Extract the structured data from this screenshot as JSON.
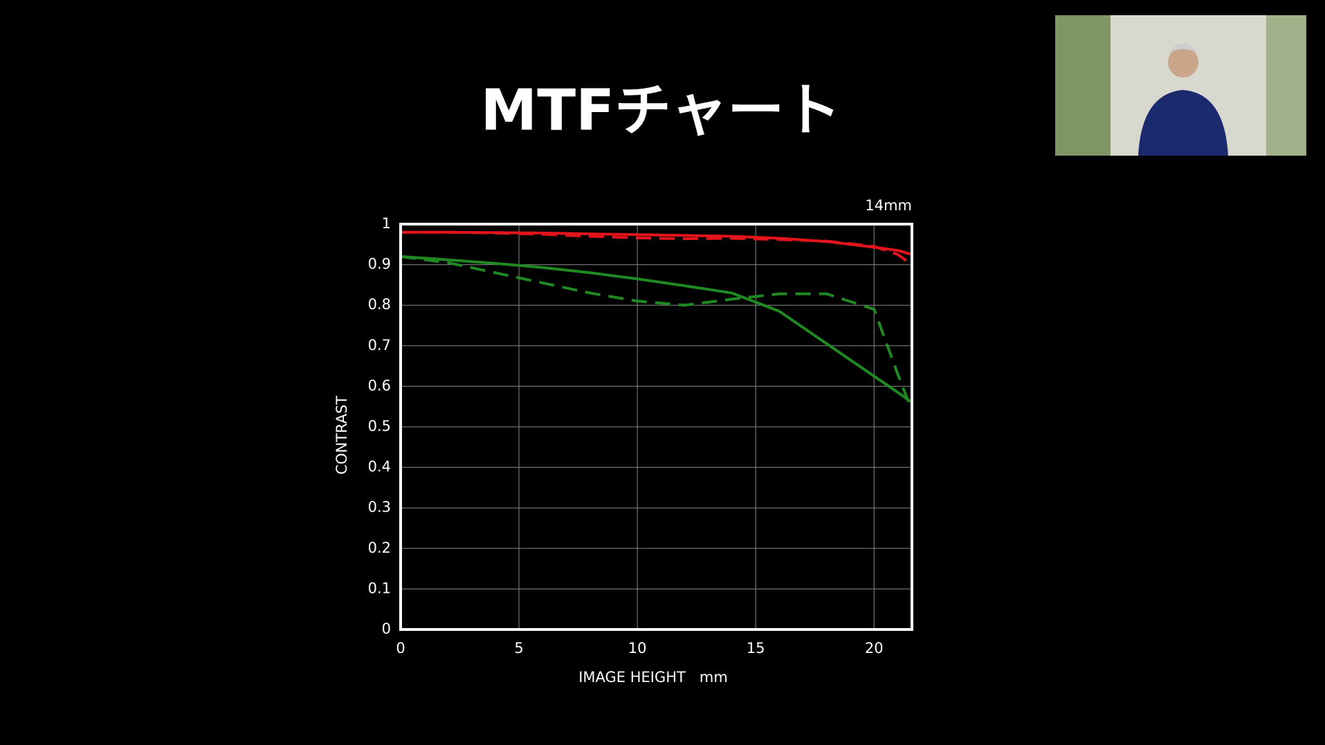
{
  "chart_data": {
    "type": "line",
    "title": "MTFチャート",
    "annotation": "14mm",
    "xlabel": "IMAGE HEIGHT   mm",
    "ylabel": "CONTRAST",
    "x": [
      0,
      2,
      4,
      6,
      8,
      10,
      12,
      14,
      16,
      18,
      20,
      21,
      21.6
    ],
    "series": [
      {
        "color": "#e3141b",
        "dashed": false,
        "values": [
          0.98,
          0.98,
          0.979,
          0.978,
          0.976,
          0.974,
          0.972,
          0.97,
          0.965,
          0.957,
          0.943,
          0.935,
          0.925
        ]
      },
      {
        "color": "#e3141b",
        "dashed": true,
        "values": [
          0.98,
          0.98,
          0.978,
          0.975,
          0.97,
          0.966,
          0.964,
          0.965,
          0.962,
          0.958,
          0.945,
          0.925,
          0.9
        ]
      },
      {
        "color": "#1f8a22",
        "dashed": false,
        "values": [
          0.92,
          0.912,
          0.903,
          0.893,
          0.88,
          0.865,
          0.848,
          0.83,
          0.785,
          0.705,
          0.625,
          0.585,
          0.56
        ]
      },
      {
        "color": "#1f8a22",
        "dashed": true,
        "values": [
          0.92,
          0.905,
          0.88,
          0.855,
          0.83,
          0.81,
          0.8,
          0.815,
          0.828,
          0.828,
          0.79,
          0.63,
          0.54
        ]
      }
    ],
    "xlim": [
      0,
      21.6
    ],
    "ylim": [
      0,
      1
    ],
    "xticks": [
      0,
      5,
      10,
      15,
      20
    ],
    "yticks": [
      0,
      0.1,
      0.2,
      0.3,
      0.4,
      0.5,
      0.6,
      0.7,
      0.8,
      0.9,
      1
    ],
    "grid": true
  }
}
